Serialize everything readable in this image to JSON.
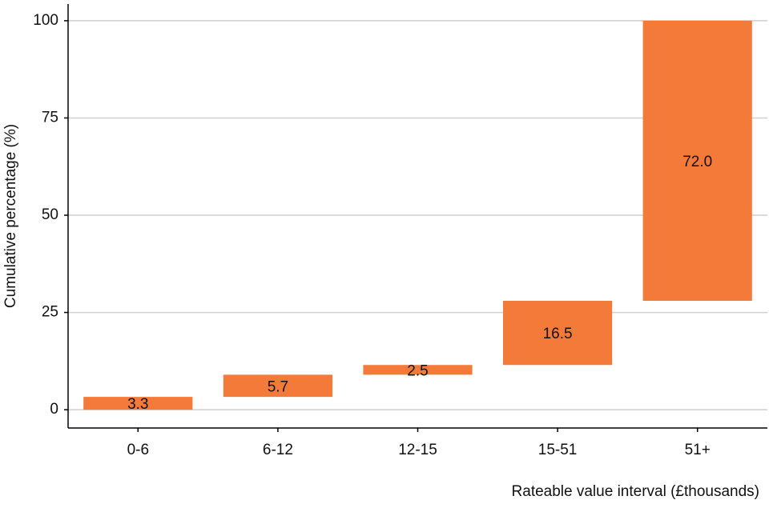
{
  "chart_data": {
    "type": "waterfall",
    "categories": [
      "0-6",
      "6-12",
      "12-15",
      "15-51",
      "51+"
    ],
    "values": [
      3.3,
      5.7,
      2.5,
      16.5,
      72.0
    ],
    "value_labels": [
      "3.3",
      "5.7",
      "2.5",
      "16.5",
      "72.0"
    ],
    "color": "#f47a3a",
    "x_label": "Rateable value interval (£thousands)",
    "y_label": "Cumulative percentage (%)",
    "ylim": [
      -4.7,
      104.3
    ],
    "yticks": [
      0,
      25,
      50,
      75,
      100
    ],
    "grid": true
  }
}
